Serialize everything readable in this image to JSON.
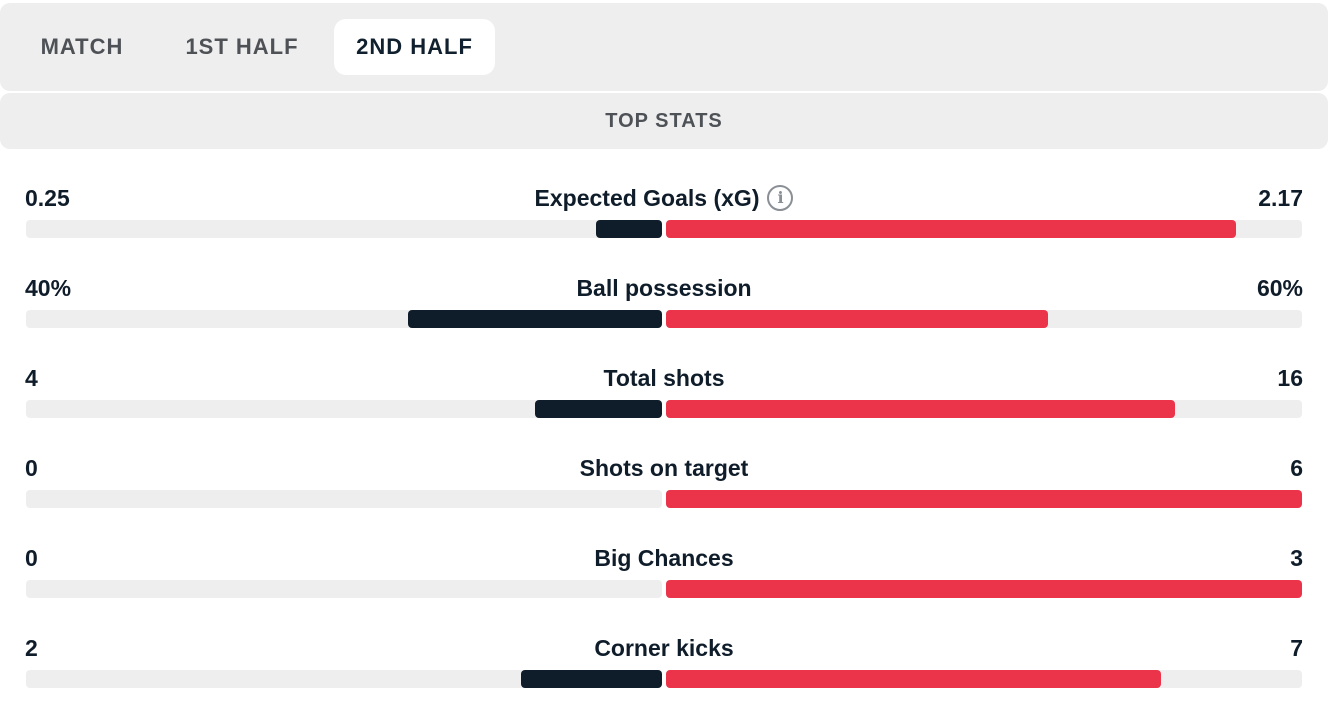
{
  "tabs": [
    {
      "label": "MATCH",
      "active": false
    },
    {
      "label": "1ST HALF",
      "active": false
    },
    {
      "label": "2ND HALF",
      "active": true
    }
  ],
  "section_title": "TOP STATS",
  "colors": {
    "home": "#0f1c2a",
    "away": "#eb334a",
    "track": "#eeeeee"
  },
  "stats": [
    {
      "label": "Expected Goals (xG)",
      "home": "0.25",
      "away": "2.17",
      "home_value": 0.25,
      "away_value": 2.17,
      "info_icon": "info-icon"
    },
    {
      "label": "Ball possession",
      "home": "40%",
      "away": "60%",
      "home_value": 40,
      "away_value": 60
    },
    {
      "label": "Total shots",
      "home": "4",
      "away": "16",
      "home_value": 4,
      "away_value": 16
    },
    {
      "label": "Shots on target",
      "home": "0",
      "away": "6",
      "home_value": 0,
      "away_value": 6
    },
    {
      "label": "Big Chances",
      "home": "0",
      "away": "3",
      "home_value": 0,
      "away_value": 3
    },
    {
      "label": "Corner kicks",
      "home": "2",
      "away": "7",
      "home_value": 2,
      "away_value": 7
    }
  ]
}
